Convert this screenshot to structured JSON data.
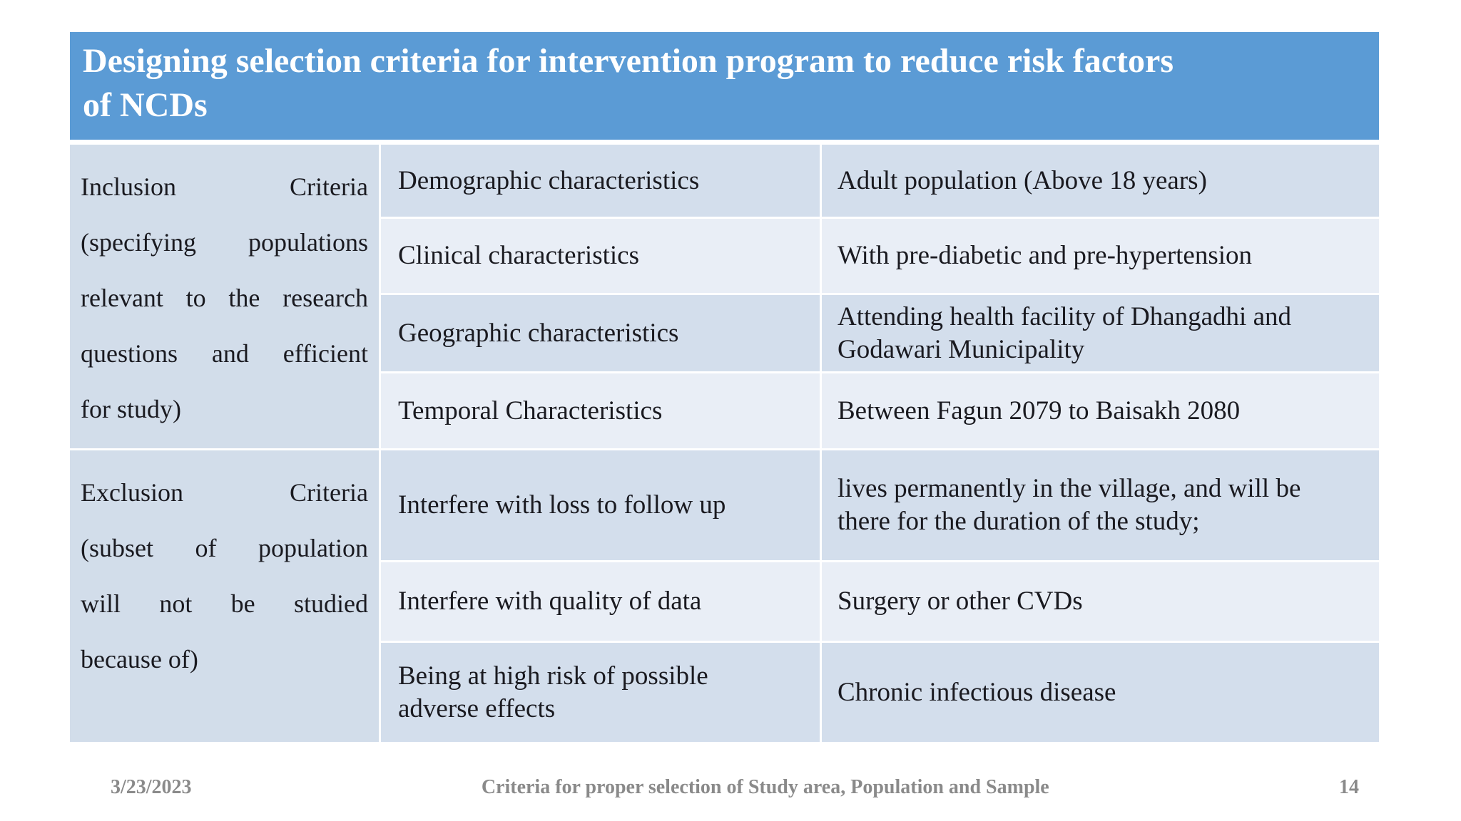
{
  "title": "Designing selection criteria for intervention program to reduce risk factors\nof NCDs",
  "colors": {
    "title_bar": "#5b9bd5",
    "band_dark": "#d3deec",
    "band_light": "#e9eef6",
    "body_text": "#1a1a20",
    "footer_text": "#8a8a8a"
  },
  "table": {
    "groups": [
      {
        "label": "Inclusion Criteria\n(specifying populations\nrelevant to the research\nquestions and efficient\nfor study)",
        "rows": [
          {
            "characteristic": "Demographic characteristics",
            "value": "Adult population (Above 18 years)"
          },
          {
            "characteristic": "Clinical characteristics",
            "value": "With pre-diabetic and pre-hypertension"
          },
          {
            "characteristic": "Geographic characteristics",
            "value": "Attending health facility of Dhangadhi and\nGodawari Municipality"
          },
          {
            "characteristic": "Temporal Characteristics",
            "value": "Between Fagun 2079 to Baisakh 2080"
          }
        ]
      },
      {
        "label": "Exclusion Criteria\n(subset of population\nwill not be studied\nbecause of)",
        "rows": [
          {
            "characteristic": "Interfere with loss to follow up",
            "value": "lives permanently in the village, and will be\nthere for the duration of the study;"
          },
          {
            "characteristic": "Interfere with quality of data",
            "value": "Surgery or other CVDs"
          },
          {
            "characteristic": "Being at high risk of possible\nadverse effects",
            "value": "Chronic infectious disease"
          }
        ]
      }
    ]
  },
  "footer": {
    "date": "3/23/2023",
    "caption": "Criteria for proper selection of Study area, Population and Sample",
    "page_number": "14"
  }
}
